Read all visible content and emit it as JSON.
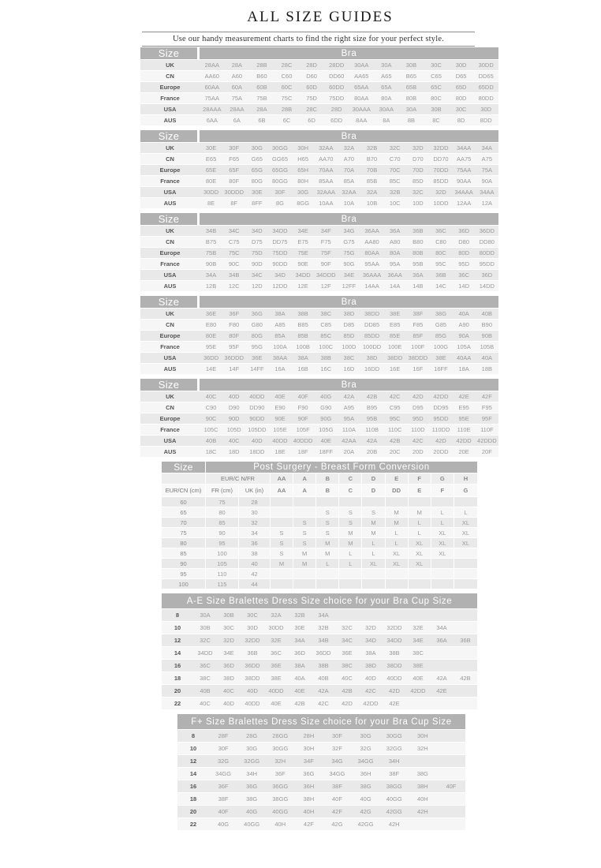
{
  "theme": {
    "header_bg": "#b1b1b1",
    "header_text": "#ffffff",
    "row_dark": "#e9e9e9",
    "row_light": "#f6f6f6",
    "label_text": "#555555",
    "value_text": "#999999",
    "rule_color": "#8c8c8c"
  },
  "page": {
    "title": "ALL SIZE GUIDES",
    "subtitle": "Use our handy measurement charts to find the right size for your perfect style."
  },
  "bra_tables": [
    {
      "size_label": "Size",
      "header": "Bra",
      "rows": [
        {
          "label": "UK",
          "cells": [
            "28AA",
            "28A",
            "28B",
            "28C",
            "28D",
            "28DD",
            "30AA",
            "30A",
            "30B",
            "30C",
            "30D",
            "30DD"
          ]
        },
        {
          "label": "CN",
          "cells": [
            "AA60",
            "A60",
            "B60",
            "C60",
            "D60",
            "DD60",
            "AA65",
            "A65",
            "B65",
            "C65",
            "D65",
            "DD65"
          ]
        },
        {
          "label": "Europe",
          "cells": [
            "60AA",
            "60A",
            "60B",
            "60C",
            "60D",
            "60DD",
            "65AA",
            "65A",
            "65B",
            "65C",
            "65D",
            "65DD"
          ]
        },
        {
          "label": "France",
          "cells": [
            "75AA",
            "75A",
            "75B",
            "75C",
            "75D",
            "75DD",
            "80AA",
            "80A",
            "80B",
            "80C",
            "80D",
            "80DD"
          ]
        },
        {
          "label": "USA",
          "cells": [
            "28AAA",
            "28AA",
            "28A",
            "28B",
            "28C",
            "28D",
            "30AAA",
            "30AA",
            "30A",
            "30B",
            "30C",
            "30D"
          ]
        },
        {
          "label": "AUS",
          "cells": [
            "6AA",
            "6A",
            "6B",
            "6C",
            "6D",
            "6DD",
            "8AA",
            "8A",
            "8B",
            "8C",
            "8D",
            "8DD"
          ]
        }
      ]
    },
    {
      "size_label": "Size",
      "header": "Bra",
      "rows": [
        {
          "label": "UK",
          "cells": [
            "30E",
            "30F",
            "30G",
            "30GG",
            "30H",
            "32AA",
            "32A",
            "32B",
            "32C",
            "32D",
            "32DD",
            "34AA",
            "34A"
          ]
        },
        {
          "label": "CN",
          "cells": [
            "E65",
            "F65",
            "G65",
            "GG65",
            "H65",
            "AA70",
            "A70",
            "B70",
            "C70",
            "D70",
            "DD70",
            "AA75",
            "A75"
          ]
        },
        {
          "label": "Europe",
          "cells": [
            "65E",
            "65F",
            "65G",
            "65GG",
            "65H",
            "70AA",
            "70A",
            "70B",
            "70C",
            "70D",
            "70DD",
            "75AA",
            "75A"
          ]
        },
        {
          "label": "France",
          "cells": [
            "80E",
            "80F",
            "80G",
            "80GG",
            "80H",
            "85AA",
            "85A",
            "85B",
            "85C",
            "85D",
            "85DD",
            "90AA",
            "90A"
          ]
        },
        {
          "label": "USA",
          "cells": [
            "30DD",
            "30DDD",
            "30E",
            "30F",
            "30G",
            "32AAA",
            "32AA",
            "32A",
            "32B",
            "32C",
            "32D",
            "34AAA",
            "34AA"
          ]
        },
        {
          "label": "AUS",
          "cells": [
            "8E",
            "8F",
            "8FF",
            "8G",
            "8GG",
            "10AA",
            "10A",
            "10B",
            "10C",
            "10D",
            "10DD",
            "12AA",
            "12A"
          ]
        }
      ]
    },
    {
      "size_label": "Size",
      "header": "Bra",
      "rows": [
        {
          "label": "UK",
          "cells": [
            "34B",
            "34C",
            "34D",
            "34DD",
            "34E",
            "34F",
            "34G",
            "36AA",
            "36A",
            "36B",
            "36C",
            "36D",
            "36DD"
          ]
        },
        {
          "label": "CN",
          "cells": [
            "B75",
            "C75",
            "D75",
            "DD75",
            "E75",
            "F75",
            "G75",
            "AA80",
            "A80",
            "B80",
            "C80",
            "D80",
            "DD80"
          ]
        },
        {
          "label": "Europe",
          "cells": [
            "75B",
            "75C",
            "75D",
            "75DD",
            "75E",
            "75F",
            "75G",
            "80AA",
            "80A",
            "80B",
            "80C",
            "80D",
            "80DD"
          ]
        },
        {
          "label": "France",
          "cells": [
            "90B",
            "90C",
            "90D",
            "90DD",
            "90E",
            "90F",
            "90G",
            "95AA",
            "95A",
            "95B",
            "95C",
            "95D",
            "95DD"
          ]
        },
        {
          "label": "USA",
          "cells": [
            "34A",
            "34B",
            "34C",
            "34D",
            "34DD",
            "34DDD",
            "34E",
            "36AAA",
            "36AA",
            "36A",
            "36B",
            "36C",
            "36D"
          ]
        },
        {
          "label": "AUS",
          "cells": [
            "12B",
            "12C",
            "12D",
            "12DD",
            "12E",
            "12F",
            "12FF",
            "14AA",
            "14A",
            "14B",
            "14C",
            "14D",
            "14DD"
          ]
        }
      ]
    },
    {
      "size_label": "Size",
      "header": "Bra",
      "rows": [
        {
          "label": "UK",
          "cells": [
            "36E",
            "36F",
            "36G",
            "38A",
            "38B",
            "38C",
            "38D",
            "38DD",
            "38E",
            "38F",
            "38G",
            "40A",
            "40B"
          ]
        },
        {
          "label": "CN",
          "cells": [
            "E80",
            "F80",
            "G80",
            "A85",
            "B85",
            "C85",
            "D85",
            "DD85",
            "E85",
            "F85",
            "G85",
            "A90",
            "B90"
          ]
        },
        {
          "label": "Europe",
          "cells": [
            "80E",
            "80F",
            "80G",
            "85A",
            "85B",
            "85C",
            "85D",
            "85DD",
            "85E",
            "85F",
            "85G",
            "90A",
            "90B"
          ]
        },
        {
          "label": "France",
          "cells": [
            "95E",
            "95F",
            "95G",
            "100A",
            "100B",
            "100C",
            "100D",
            "100DD",
            "100E",
            "100F",
            "100G",
            "105A",
            "105B"
          ]
        },
        {
          "label": "USA",
          "cells": [
            "36DD",
            "36DDD",
            "36E",
            "38AA",
            "38A",
            "38B",
            "38C",
            "38D",
            "38DD",
            "38DDD",
            "38E",
            "40AA",
            "40A"
          ]
        },
        {
          "label": "AUS",
          "cells": [
            "14E",
            "14F",
            "14FF",
            "16A",
            "16B",
            "16C",
            "16D",
            "16DD",
            "16E",
            "16F",
            "16FF",
            "18A",
            "18B"
          ]
        }
      ]
    },
    {
      "size_label": "Size",
      "header": "Bra",
      "rows": [
        {
          "label": "UK",
          "cells": [
            "40C",
            "40D",
            "40DD",
            "40E",
            "40F",
            "40G",
            "42A",
            "42B",
            "42C",
            "42D",
            "42DD",
            "42E",
            "42F"
          ]
        },
        {
          "label": "CN",
          "cells": [
            "C90",
            "D90",
            "DD90",
            "E90",
            "F90",
            "G90",
            "A95",
            "B95",
            "C95",
            "D95",
            "DD95",
            "E95",
            "F95"
          ]
        },
        {
          "label": "Europe",
          "cells": [
            "90C",
            "90D",
            "90DD",
            "90E",
            "90F",
            "90G",
            "95A",
            "95B",
            "95C",
            "95D",
            "95DD",
            "95E",
            "95F"
          ]
        },
        {
          "label": "France",
          "cells": [
            "105C",
            "105D",
            "105DD",
            "105E",
            "105F",
            "105G",
            "110A",
            "110B",
            "110C",
            "110D",
            "110DD",
            "110E",
            "110F"
          ]
        },
        {
          "label": "USA",
          "cells": [
            "40B",
            "40C",
            "40D",
            "40DD",
            "40DDD",
            "40E",
            "42AA",
            "42A",
            "42B",
            "42C",
            "42D",
            "42DD",
            "42DDD"
          ]
        },
        {
          "label": "AUS",
          "cells": [
            "18C",
            "18D",
            "18DD",
            "18E",
            "18F",
            "18FF",
            "20A",
            "20B",
            "20C",
            "20D",
            "20DD",
            "20E",
            "20F"
          ]
        }
      ]
    }
  ],
  "post_surgery": {
    "size_label": "Size",
    "header": "Post Surgery - Breast Form Conversion",
    "merged_subheader": "EUR/C N/FR",
    "top_sizes": [
      "AA",
      "A",
      "B",
      "C",
      "D",
      "E",
      "F",
      "G",
      "H"
    ],
    "col_headers": [
      "EUR/CN (cm)",
      "FR (cm)",
      "UK (in)",
      "AA",
      "A",
      "B",
      "C",
      "D",
      "DD",
      "E",
      "F",
      "G"
    ],
    "rows": [
      [
        "60",
        "75",
        "28",
        "",
        "",
        "",
        "",
        "",
        "",
        "",
        "",
        ""
      ],
      [
        "65",
        "80",
        "30",
        "",
        "",
        "S",
        "S",
        "S",
        "M",
        "M",
        "L",
        "L"
      ],
      [
        "70",
        "85",
        "32",
        "",
        "S",
        "S",
        "S",
        "M",
        "M",
        "L",
        "L",
        "XL"
      ],
      [
        "75",
        "90",
        "34",
        "S",
        "S",
        "S",
        "M",
        "M",
        "L",
        "L",
        "XL",
        "XL"
      ],
      [
        "80",
        "95",
        "36",
        "S",
        "S",
        "M",
        "M",
        "L",
        "L",
        "XL",
        "XL",
        "XL"
      ],
      [
        "85",
        "100",
        "38",
        "S",
        "M",
        "M",
        "L",
        "L",
        "XL",
        "XL",
        "XL",
        ""
      ],
      [
        "90",
        "105",
        "40",
        "M",
        "M",
        "L",
        "L",
        "XL",
        "XL",
        "XL",
        "",
        ""
      ],
      [
        "95",
        "110",
        "42",
        "",
        "",
        "",
        "",
        "",
        "",
        "",
        "",
        ""
      ],
      [
        "100",
        "115",
        "44",
        "",
        "",
        "",
        "",
        "",
        "",
        "",
        "",
        ""
      ]
    ]
  },
  "ae_bralettes": {
    "header": "A-E Size Bralettes Dress Size choice for your Bra Cup Size",
    "rows": [
      {
        "label": "8",
        "cells": [
          "30A",
          "30B",
          "30C",
          "32A",
          "32B",
          "34A",
          "",
          "",
          "",
          "",
          "",
          ""
        ]
      },
      {
        "label": "10",
        "cells": [
          "30B",
          "30C",
          "30D",
          "30DD",
          "30E",
          "32B",
          "32C",
          "32D",
          "32DD",
          "32E",
          "34A",
          ""
        ]
      },
      {
        "label": "12",
        "cells": [
          "32C",
          "32D",
          "32DD",
          "32E",
          "34A",
          "34B",
          "34C",
          "34D",
          "34DD",
          "34E",
          "36A",
          "36B"
        ]
      },
      {
        "label": "14",
        "cells": [
          "34DD",
          "34E",
          "36B",
          "36C",
          "36D",
          "36DD",
          "36E",
          "38A",
          "38B",
          "38C",
          "",
          ""
        ]
      },
      {
        "label": "16",
        "cells": [
          "36C",
          "36D",
          "36DD",
          "36E",
          "38A",
          "38B",
          "38C",
          "38D",
          "38DD",
          "38E",
          "",
          ""
        ]
      },
      {
        "label": "18",
        "cells": [
          "38C",
          "38D",
          "38DD",
          "38E",
          "40A",
          "40B",
          "40C",
          "40D",
          "40DD",
          "40E",
          "42A",
          "42B"
        ]
      },
      {
        "label": "20",
        "cells": [
          "40B",
          "40C",
          "40D",
          "40DD",
          "40E",
          "42A",
          "42B",
          "42C",
          "42D",
          "42DD",
          "42E",
          ""
        ]
      },
      {
        "label": "22",
        "cells": [
          "40C",
          "40D",
          "40DD",
          "40E",
          "42B",
          "42C",
          "42D",
          "42DD",
          "42E",
          "",
          "",
          ""
        ]
      }
    ]
  },
  "fplus_bralettes": {
    "header": "F+ Size Bralettes Dress Size choice for your Bra Cup Size",
    "rows": [
      {
        "label": "8",
        "cells": [
          "28F",
          "28G",
          "28GG",
          "28H",
          "30F",
          "30G",
          "30GG",
          "30H",
          ""
        ]
      },
      {
        "label": "10",
        "cells": [
          "30F",
          "30G",
          "30GG",
          "30H",
          "32F",
          "32G",
          "32GG",
          "32H",
          ""
        ]
      },
      {
        "label": "12",
        "cells": [
          "32G",
          "32GG",
          "32H",
          "34F",
          "34G",
          "34GG",
          "34H",
          "",
          ""
        ]
      },
      {
        "label": "14",
        "cells": [
          "34GG",
          "34H",
          "36F",
          "36G",
          "34GG",
          "36H",
          "38F",
          "38G",
          ""
        ]
      },
      {
        "label": "16",
        "cells": [
          "36F",
          "36G",
          "36GG",
          "36H",
          "38F",
          "38G",
          "38GG",
          "38H",
          "40F"
        ]
      },
      {
        "label": "18",
        "cells": [
          "38F",
          "38G",
          "38GG",
          "38H",
          "40F",
          "40G",
          "40GG",
          "40H",
          ""
        ]
      },
      {
        "label": "20",
        "cells": [
          "40F",
          "40G",
          "40GG",
          "40H",
          "42F",
          "42G",
          "42GG",
          "42H",
          ""
        ]
      },
      {
        "label": "22",
        "cells": [
          "40G",
          "40GG",
          "40H",
          "42F",
          "42G",
          "42GG",
          "42H",
          "",
          ""
        ]
      }
    ]
  }
}
